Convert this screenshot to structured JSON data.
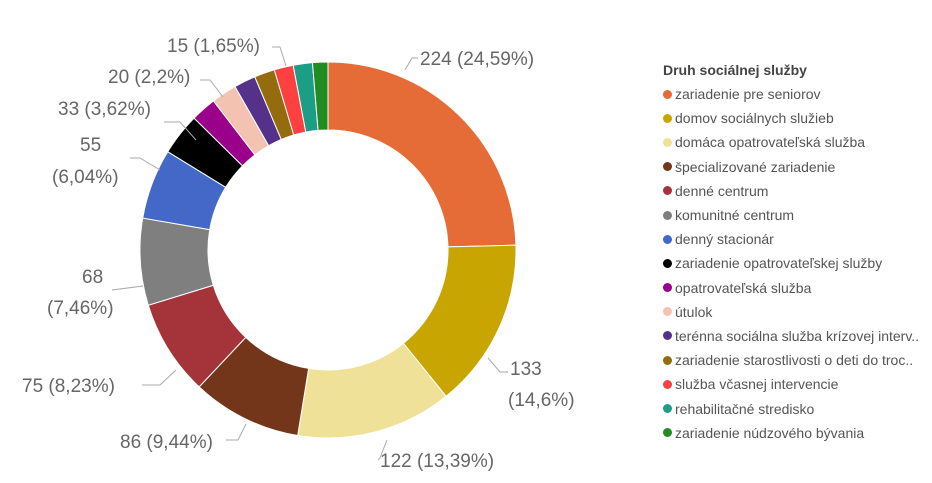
{
  "chart_data": {
    "type": "pie",
    "variant": "donut",
    "legend_title": "Druh sociálnej služby",
    "legend_position": "right",
    "categories": [
      "zariadenie pre seniorov",
      "domov sociálnych služieb",
      "domáca opatrovateľská služba",
      "špecializované zariadenie",
      "denné centrum",
      "komunitné centrum",
      "denný stacionár",
      "zariadenie opatrovateľskej služby",
      "opatrovateľská služba",
      "útulok",
      "terénna sociálna služba krízovej interv..",
      "zariadenie starostlivosti o deti do troc..",
      "služba včasnej intervencie",
      "rehabilitačné stredisko",
      "zariadenie núdzového bývania"
    ],
    "values": [
      224,
      133,
      122,
      86,
      75,
      68,
      55,
      33,
      20,
      20,
      17,
      16,
      15,
      15,
      12
    ],
    "colors": [
      "#E66C37",
      "#C8A500",
      "#F0E199",
      "#74361B",
      "#A4343A",
      "#7F7F7F",
      "#4368C8",
      "#000000",
      "#9A0089",
      "#F4C2B0",
      "#54328A",
      "#946C0E",
      "#FF4040",
      "#1C9E86",
      "#228B22"
    ],
    "data_labels": [
      [
        "224 (24,59%)"
      ],
      [
        "133",
        "(14,6%)"
      ],
      [
        "122 (13,39%)"
      ],
      [
        "86 (9,44%)"
      ],
      [
        "75 (8,23%)"
      ],
      [
        "68",
        "(7,46%)"
      ],
      [
        "55",
        "(6,04%)"
      ],
      [
        "33 (3,62%)"
      ],
      null,
      [
        "20 (2,2%)"
      ],
      null,
      null,
      [
        "15 (1,65%)"
      ],
      null,
      null
    ]
  }
}
